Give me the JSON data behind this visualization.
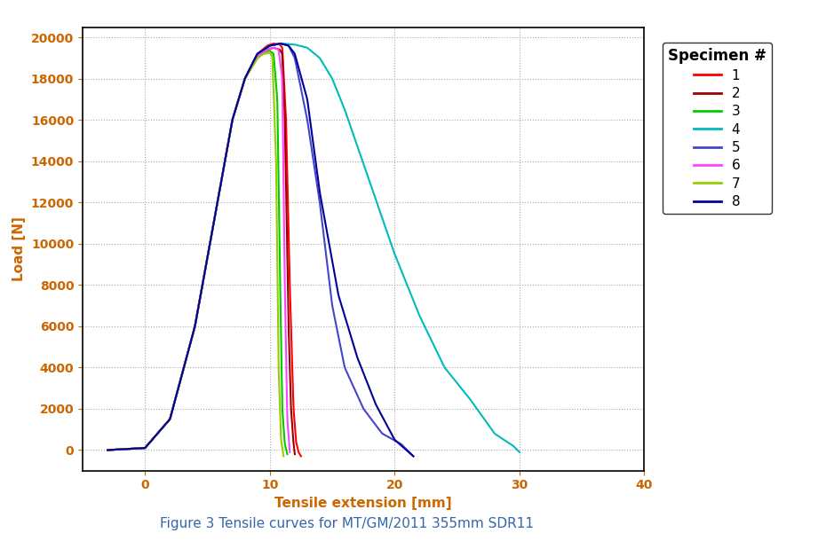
{
  "title": "Figure 3 Tensile curves for MT/GM/2011 355mm SDR11",
  "xlabel": "Tensile extension [mm]",
  "ylabel": "Load [N]",
  "xlim": [
    -5,
    40
  ],
  "ylim": [
    -1000,
    20500
  ],
  "xticks": [
    0,
    10,
    20,
    30,
    40
  ],
  "yticks": [
    0,
    2000,
    4000,
    6000,
    8000,
    10000,
    12000,
    14000,
    16000,
    18000,
    20000
  ],
  "background_color": "#ffffff",
  "legend_title": "Specimen #",
  "tick_color": "#cc6600",
  "label_color": "#cc6600",
  "specimens": [
    {
      "id": 1,
      "color": "#ff0000",
      "x": [
        -3.0,
        0.0,
        2.0,
        4.0,
        5.5,
        7.0,
        8.0,
        9.0,
        9.8,
        10.3,
        10.8,
        11.0,
        11.3,
        11.6,
        11.9,
        12.1,
        12.3,
        12.5
      ],
      "y": [
        0,
        100,
        1500,
        6000,
        11000,
        16000,
        18000,
        19200,
        19600,
        19700,
        19650,
        19500,
        16000,
        8000,
        2000,
        400,
        -100,
        -300
      ]
    },
    {
      "id": 2,
      "color": "#990000",
      "x": [
        -3.0,
        0.0,
        2.0,
        4.0,
        5.5,
        7.0,
        8.0,
        9.0,
        9.8,
        10.3,
        10.8,
        11.0,
        11.2,
        11.5,
        11.7,
        11.9,
        12.0
      ],
      "y": [
        0,
        100,
        1500,
        6000,
        11000,
        16000,
        18000,
        19000,
        19400,
        19500,
        19400,
        19200,
        16000,
        6000,
        2000,
        300,
        -200
      ]
    },
    {
      "id": 3,
      "color": "#00cc00",
      "x": [
        -3.0,
        0.0,
        2.0,
        4.0,
        5.5,
        7.0,
        8.0,
        9.0,
        9.5,
        10.0,
        10.3,
        10.6,
        10.8,
        11.0,
        11.2,
        11.4
      ],
      "y": [
        0,
        100,
        1500,
        6000,
        11000,
        16000,
        18000,
        19100,
        19300,
        19350,
        19200,
        17000,
        9000,
        2000,
        300,
        -200
      ]
    },
    {
      "id": 4,
      "color": "#00bbbb",
      "x": [
        -3.0,
        0.0,
        2.0,
        4.0,
        5.5,
        7.0,
        8.0,
        9.0,
        10.0,
        11.0,
        12.0,
        13.0,
        14.0,
        15.0,
        16.0,
        18.0,
        20.0,
        22.0,
        24.0,
        26.0,
        28.0,
        29.5,
        30.0
      ],
      "y": [
        0,
        100,
        1500,
        6000,
        11000,
        16000,
        18000,
        19200,
        19600,
        19700,
        19650,
        19500,
        19000,
        18000,
        16500,
        13000,
        9500,
        6500,
        4000,
        2500,
        800,
        200,
        -100
      ]
    },
    {
      "id": 5,
      "color": "#4444cc",
      "x": [
        -3.0,
        0.0,
        2.0,
        4.0,
        5.5,
        7.0,
        8.0,
        9.0,
        10.0,
        10.8,
        11.0,
        11.5,
        12.0,
        13.0,
        14.0,
        15.0,
        16.0,
        17.5,
        19.0,
        20.5,
        21.5
      ],
      "y": [
        0,
        100,
        1500,
        6000,
        11000,
        16000,
        18000,
        19200,
        19600,
        19700,
        19680,
        19600,
        19000,
        16000,
        12000,
        7000,
        4000,
        2000,
        800,
        300,
        -300
      ]
    },
    {
      "id": 6,
      "color": "#ff44ff",
      "x": [
        -3.0,
        0.0,
        2.0,
        4.0,
        5.5,
        7.0,
        8.0,
        9.0,
        9.8,
        10.3,
        10.7,
        11.0,
        11.2,
        11.4,
        11.6
      ],
      "y": [
        0,
        100,
        1500,
        6000,
        11000,
        16000,
        18000,
        19100,
        19400,
        19500,
        19400,
        18000,
        8000,
        1500,
        -100
      ]
    },
    {
      "id": 7,
      "color": "#99cc00",
      "x": [
        -3.0,
        0.0,
        2.0,
        4.0,
        5.5,
        7.0,
        8.0,
        9.0,
        9.5,
        10.0,
        10.2,
        10.5,
        10.7,
        10.9,
        11.1
      ],
      "y": [
        0,
        100,
        1500,
        6000,
        11000,
        16000,
        18000,
        19000,
        19200,
        19250,
        19100,
        14000,
        4000,
        500,
        -300
      ]
    },
    {
      "id": 8,
      "color": "#000099",
      "x": [
        -3.0,
        0.0,
        2.0,
        4.0,
        5.5,
        7.0,
        8.0,
        9.0,
        10.0,
        10.8,
        11.0,
        11.5,
        12.0,
        13.0,
        14.0,
        15.5,
        17.0,
        18.5,
        20.0,
        21.5
      ],
      "y": [
        0,
        100,
        1500,
        6000,
        11000,
        16000,
        18000,
        19200,
        19600,
        19700,
        19680,
        19600,
        19200,
        17000,
        12500,
        7500,
        4500,
        2200,
        500,
        -300
      ]
    }
  ]
}
